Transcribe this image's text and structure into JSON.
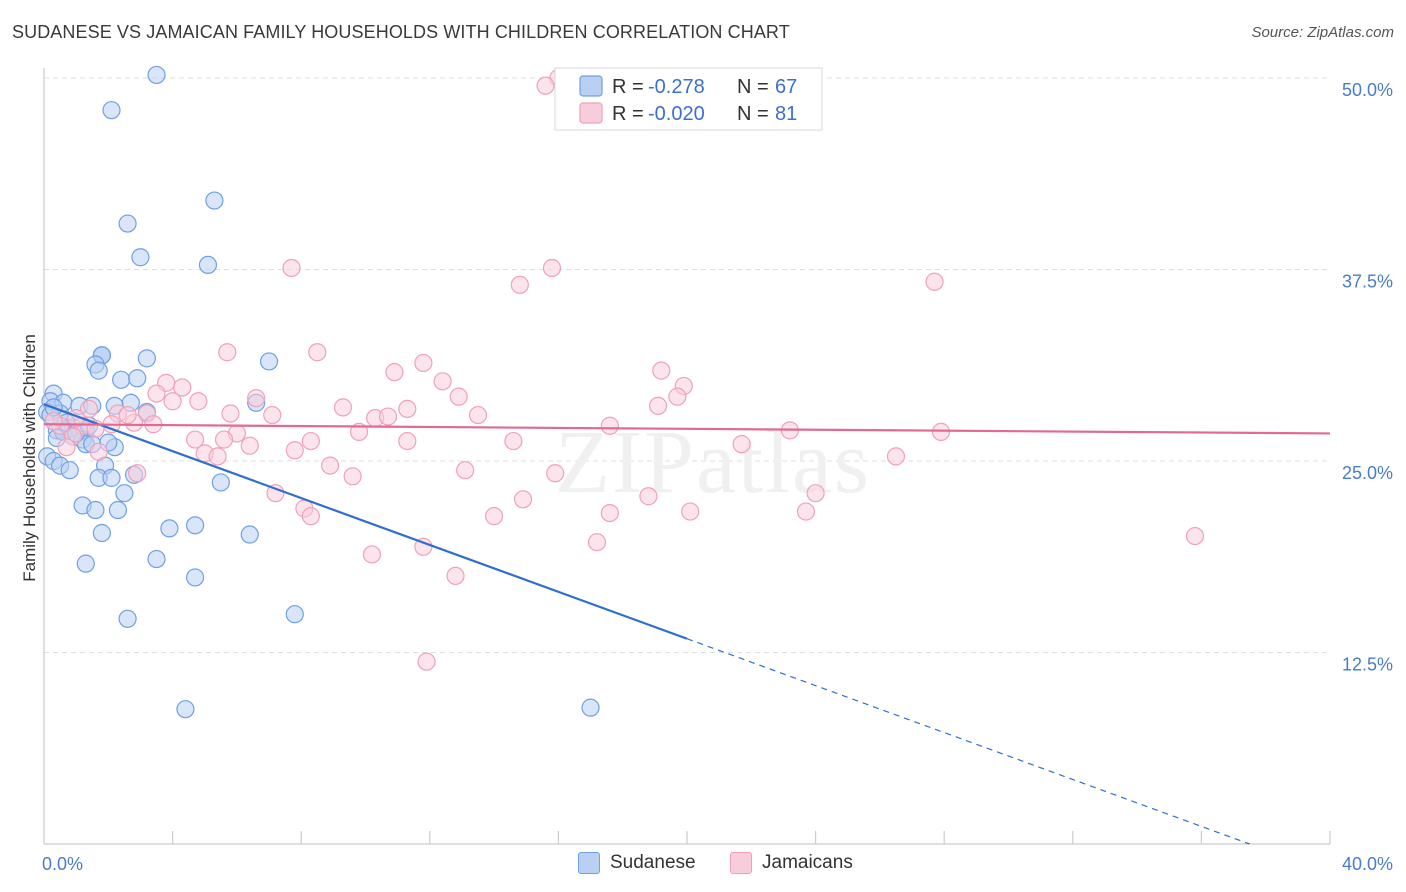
{
  "chart_data": {
    "type": "scatter",
    "title": "SUDANESE VS JAMAICAN FAMILY HOUSEHOLDS WITH CHILDREN CORRELATION CHART",
    "source": "Source: ZipAtlas.com",
    "xlabel": "",
    "ylabel": "Family Households with Children",
    "xlim": [
      0,
      40
    ],
    "ylim": [
      0,
      50
    ],
    "x_tick_labels": [
      "0.0%",
      "40.0%"
    ],
    "y_tick_values": [
      12.5,
      25.0,
      37.5,
      50.0
    ],
    "y_tick_labels": [
      "12.5%",
      "25.0%",
      "37.5%",
      "50.0%"
    ],
    "watermark": "ZIPatlas",
    "legend": {
      "r_label": "R =",
      "n_label": "N =",
      "entries": [
        {
          "r": "-0.278",
          "n": "67"
        },
        {
          "r": "-0.020",
          "n": "81"
        }
      ]
    },
    "series": [
      {
        "name": "Sudanese",
        "color": "#6fa0e6",
        "fill": "#b9d0f3",
        "line_color": "#2e6fd0",
        "trend": {
          "x0": 0.0,
          "y0": 28.7,
          "x1": 20.0,
          "y1": 13.4,
          "dash_x1": 37.5,
          "dash_y1": 0.0
        },
        "points": [
          [
            3.5,
            50.2
          ],
          [
            2.1,
            47.9
          ],
          [
            5.3,
            42.0
          ],
          [
            2.6,
            40.5
          ],
          [
            3.0,
            38.3
          ],
          [
            5.1,
            37.8
          ],
          [
            1.8,
            31.9
          ],
          [
            1.8,
            31.9
          ],
          [
            1.8,
            31.9
          ],
          [
            3.2,
            31.7
          ],
          [
            7.0,
            31.5
          ],
          [
            1.6,
            31.3
          ],
          [
            1.7,
            30.9
          ],
          [
            2.4,
            30.3
          ],
          [
            2.9,
            30.4
          ],
          [
            0.3,
            29.4
          ],
          [
            0.2,
            28.9
          ],
          [
            0.6,
            28.8
          ],
          [
            1.1,
            28.6
          ],
          [
            1.5,
            28.6
          ],
          [
            2.2,
            28.6
          ],
          [
            2.7,
            28.8
          ],
          [
            3.2,
            28.2
          ],
          [
            6.6,
            28.8
          ],
          [
            0.1,
            28.2
          ],
          [
            0.5,
            28.1
          ],
          [
            0.9,
            27.2
          ],
          [
            0.8,
            27.1
          ],
          [
            0.4,
            27.0
          ],
          [
            1.3,
            27.0
          ],
          [
            0.6,
            26.9
          ],
          [
            0.9,
            26.6
          ],
          [
            1.2,
            26.4
          ],
          [
            1.3,
            26.1
          ],
          [
            1.5,
            26.1
          ],
          [
            2.2,
            25.9
          ],
          [
            0.1,
            25.3
          ],
          [
            0.3,
            25.0
          ],
          [
            0.5,
            24.7
          ],
          [
            0.8,
            24.4
          ],
          [
            1.9,
            24.7
          ],
          [
            1.7,
            23.9
          ],
          [
            2.1,
            23.9
          ],
          [
            2.8,
            24.1
          ],
          [
            5.5,
            23.6
          ],
          [
            2.5,
            22.9
          ],
          [
            1.2,
            22.1
          ],
          [
            1.6,
            21.8
          ],
          [
            2.3,
            21.8
          ],
          [
            4.7,
            20.8
          ],
          [
            3.9,
            20.6
          ],
          [
            6.4,
            20.2
          ],
          [
            1.8,
            20.3
          ],
          [
            3.5,
            18.6
          ],
          [
            1.3,
            18.3
          ],
          [
            4.7,
            17.4
          ],
          [
            7.8,
            15.0
          ],
          [
            2.6,
            14.7
          ],
          [
            4.4,
            8.8
          ],
          [
            17.0,
            8.9
          ],
          [
            0.2,
            28.0
          ],
          [
            0.7,
            27.5
          ],
          [
            1.0,
            26.8
          ],
          [
            1.4,
            27.3
          ],
          [
            0.4,
            26.5
          ],
          [
            2.0,
            26.2
          ],
          [
            0.3,
            28.5
          ]
        ]
      },
      {
        "name": "Jamaicans",
        "color": "#f1a0bb",
        "fill": "#f8cddb",
        "line_color": "#e06a93",
        "trend": {
          "x0": 0.0,
          "y0": 27.4,
          "x1": 40.0,
          "y1": 26.8
        },
        "points": [
          [
            16.0,
            50.0
          ],
          [
            15.6,
            49.5
          ],
          [
            7.7,
            37.6
          ],
          [
            15.8,
            37.6
          ],
          [
            14.8,
            36.5
          ],
          [
            27.7,
            36.7
          ],
          [
            5.7,
            32.1
          ],
          [
            8.5,
            32.1
          ],
          [
            11.8,
            31.4
          ],
          [
            10.9,
            30.8
          ],
          [
            19.2,
            30.9
          ],
          [
            12.4,
            30.2
          ],
          [
            19.9,
            29.9
          ],
          [
            3.8,
            30.1
          ],
          [
            4.3,
            29.8
          ],
          [
            6.6,
            29.1
          ],
          [
            3.5,
            29.4
          ],
          [
            12.9,
            29.2
          ],
          [
            4.0,
            28.9
          ],
          [
            4.8,
            28.9
          ],
          [
            19.7,
            29.2
          ],
          [
            9.3,
            28.5
          ],
          [
            11.3,
            28.4
          ],
          [
            19.1,
            28.6
          ],
          [
            1.4,
            28.4
          ],
          [
            2.3,
            28.1
          ],
          [
            3.2,
            28.1
          ],
          [
            5.8,
            28.1
          ],
          [
            7.1,
            28.0
          ],
          [
            10.3,
            27.8
          ],
          [
            10.7,
            27.9
          ],
          [
            0.5,
            27.3
          ],
          [
            1.2,
            27.3
          ],
          [
            2.1,
            27.4
          ],
          [
            2.8,
            27.5
          ],
          [
            3.4,
            27.4
          ],
          [
            17.6,
            27.3
          ],
          [
            23.2,
            27.0
          ],
          [
            27.9,
            26.9
          ],
          [
            1.6,
            27.1
          ],
          [
            0.9,
            26.6
          ],
          [
            6.0,
            26.8
          ],
          [
            9.8,
            26.9
          ],
          [
            4.7,
            26.4
          ],
          [
            5.6,
            26.4
          ],
          [
            8.3,
            26.3
          ],
          [
            11.3,
            26.3
          ],
          [
            14.6,
            26.3
          ],
          [
            6.4,
            26.0
          ],
          [
            21.7,
            26.1
          ],
          [
            1.7,
            25.6
          ],
          [
            5.0,
            25.5
          ],
          [
            5.4,
            25.3
          ],
          [
            7.8,
            25.7
          ],
          [
            26.5,
            25.3
          ],
          [
            8.9,
            24.7
          ],
          [
            0.7,
            25.9
          ],
          [
            9.6,
            24.0
          ],
          [
            13.1,
            24.4
          ],
          [
            15.9,
            24.2
          ],
          [
            7.2,
            22.9
          ],
          [
            14.9,
            22.5
          ],
          [
            20.1,
            21.7
          ],
          [
            18.8,
            22.7
          ],
          [
            24.0,
            22.9
          ],
          [
            8.1,
            21.9
          ],
          [
            8.3,
            21.4
          ],
          [
            14.0,
            21.4
          ],
          [
            17.6,
            21.6
          ],
          [
            23.7,
            21.7
          ],
          [
            17.2,
            19.7
          ],
          [
            11.8,
            19.4
          ],
          [
            10.2,
            18.9
          ],
          [
            12.8,
            17.5
          ],
          [
            11.9,
            11.9
          ],
          [
            35.8,
            20.1
          ],
          [
            2.6,
            28.0
          ],
          [
            1.0,
            27.8
          ],
          [
            13.5,
            28.0
          ],
          [
            2.9,
            24.2
          ],
          [
            0.3,
            27.6
          ]
        ]
      }
    ]
  }
}
